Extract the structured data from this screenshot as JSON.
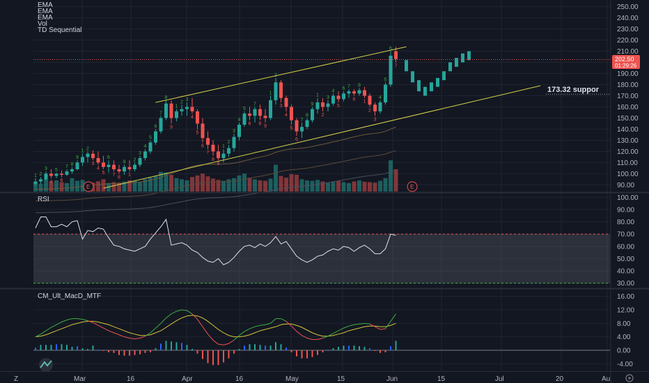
{
  "legend": {
    "main": [
      "EMA",
      "EMA",
      "EMA",
      "Vol",
      "TD Sequential"
    ],
    "rsi": "RSI",
    "macd": "CM_Ult_MacD_MTF"
  },
  "price_badge": {
    "price": "202.50",
    "countdown": "01:29:26"
  },
  "support_label": "173.32 suppor",
  "earnings_marker": "E",
  "time_labels": [
    "Mar",
    "16",
    "Apr",
    "16",
    "May",
    "15",
    "Jun",
    "15",
    "Jul",
    "20",
    "Au"
  ],
  "corner_left": "Z",
  "colors": {
    "background": "#131722",
    "grid": "#1f2430",
    "up_candle": "#26a69a",
    "down_candle": "#ef5350",
    "channel": "#d6d24a",
    "rsi_line": "#e0e3eb",
    "macd_line": "#3cb043",
    "signal_line": "#d6c43a",
    "price_line": "#ef5350"
  },
  "chart_data": [
    {
      "type": "candlestick",
      "title": "",
      "y_ticks": [
        250,
        240,
        230,
        220,
        210,
        200,
        190,
        180,
        170,
        160,
        150,
        140,
        130,
        120,
        110,
        100,
        90
      ],
      "ylim": [
        84,
        256
      ],
      "last_price": 202.5,
      "support_level": 173.32,
      "candles": [
        {
          "o": 91,
          "h": 96,
          "l": 89,
          "c": 93
        },
        {
          "o": 93,
          "h": 97,
          "l": 91,
          "c": 95
        },
        {
          "o": 95,
          "h": 102,
          "l": 94,
          "c": 100
        },
        {
          "o": 100,
          "h": 104,
          "l": 96,
          "c": 98
        },
        {
          "o": 98,
          "h": 101,
          "l": 96,
          "c": 100
        },
        {
          "o": 100,
          "h": 103,
          "l": 97,
          "c": 99
        },
        {
          "o": 99,
          "h": 104,
          "l": 98,
          "c": 102
        },
        {
          "o": 102,
          "h": 106,
          "l": 100,
          "c": 104
        },
        {
          "o": 104,
          "h": 112,
          "l": 103,
          "c": 110
        },
        {
          "o": 110,
          "h": 118,
          "l": 107,
          "c": 115
        },
        {
          "o": 115,
          "h": 120,
          "l": 110,
          "c": 118
        },
        {
          "o": 118,
          "h": 121,
          "l": 112,
          "c": 114
        },
        {
          "o": 114,
          "h": 120,
          "l": 108,
          "c": 110
        },
        {
          "o": 110,
          "h": 116,
          "l": 104,
          "c": 106
        },
        {
          "o": 106,
          "h": 112,
          "l": 101,
          "c": 108
        },
        {
          "o": 108,
          "h": 112,
          "l": 102,
          "c": 104
        },
        {
          "o": 104,
          "h": 108,
          "l": 100,
          "c": 102
        },
        {
          "o": 102,
          "h": 108,
          "l": 99,
          "c": 106
        },
        {
          "o": 106,
          "h": 112,
          "l": 102,
          "c": 104
        },
        {
          "o": 104,
          "h": 110,
          "l": 102,
          "c": 108
        },
        {
          "o": 108,
          "h": 116,
          "l": 106,
          "c": 114
        },
        {
          "o": 114,
          "h": 122,
          "l": 112,
          "c": 120
        },
        {
          "o": 120,
          "h": 130,
          "l": 118,
          "c": 128
        },
        {
          "o": 128,
          "h": 140,
          "l": 126,
          "c": 138
        },
        {
          "o": 138,
          "h": 152,
          "l": 136,
          "c": 150
        },
        {
          "o": 150,
          "h": 166,
          "l": 148,
          "c": 163
        },
        {
          "o": 163,
          "h": 166,
          "l": 145,
          "c": 150
        },
        {
          "o": 150,
          "h": 158,
          "l": 147,
          "c": 156
        },
        {
          "o": 156,
          "h": 162,
          "l": 152,
          "c": 158
        },
        {
          "o": 158,
          "h": 164,
          "l": 152,
          "c": 160
        },
        {
          "o": 160,
          "h": 168,
          "l": 154,
          "c": 156
        },
        {
          "o": 156,
          "h": 158,
          "l": 140,
          "c": 145
        },
        {
          "o": 145,
          "h": 150,
          "l": 128,
          "c": 132
        },
        {
          "o": 132,
          "h": 138,
          "l": 122,
          "c": 126
        },
        {
          "o": 126,
          "h": 130,
          "l": 116,
          "c": 120
        },
        {
          "o": 120,
          "h": 126,
          "l": 112,
          "c": 114
        },
        {
          "o": 114,
          "h": 122,
          "l": 110,
          "c": 118
        },
        {
          "o": 118,
          "h": 126,
          "l": 115,
          "c": 123
        },
        {
          "o": 123,
          "h": 136,
          "l": 120,
          "c": 133
        },
        {
          "o": 133,
          "h": 146,
          "l": 130,
          "c": 144
        },
        {
          "o": 144,
          "h": 156,
          "l": 142,
          "c": 154
        },
        {
          "o": 154,
          "h": 160,
          "l": 148,
          "c": 152
        },
        {
          "o": 152,
          "h": 160,
          "l": 146,
          "c": 158
        },
        {
          "o": 158,
          "h": 162,
          "l": 148,
          "c": 152
        },
        {
          "o": 152,
          "h": 158,
          "l": 146,
          "c": 150
        },
        {
          "o": 150,
          "h": 170,
          "l": 148,
          "c": 166
        },
        {
          "o": 166,
          "h": 186,
          "l": 162,
          "c": 182
        },
        {
          "o": 182,
          "h": 184,
          "l": 164,
          "c": 168
        },
        {
          "o": 168,
          "h": 170,
          "l": 156,
          "c": 160
        },
        {
          "o": 160,
          "h": 162,
          "l": 144,
          "c": 148
        },
        {
          "o": 148,
          "h": 150,
          "l": 134,
          "c": 138
        },
        {
          "o": 138,
          "h": 146,
          "l": 132,
          "c": 142
        },
        {
          "o": 142,
          "h": 150,
          "l": 140,
          "c": 148
        },
        {
          "o": 148,
          "h": 160,
          "l": 146,
          "c": 158
        },
        {
          "o": 158,
          "h": 168,
          "l": 154,
          "c": 164
        },
        {
          "o": 164,
          "h": 168,
          "l": 156,
          "c": 160
        },
        {
          "o": 160,
          "h": 166,
          "l": 156,
          "c": 163
        },
        {
          "o": 163,
          "h": 172,
          "l": 161,
          "c": 170
        },
        {
          "o": 170,
          "h": 174,
          "l": 164,
          "c": 167
        },
        {
          "o": 167,
          "h": 174,
          "l": 165,
          "c": 172
        },
        {
          "o": 172,
          "h": 176,
          "l": 168,
          "c": 174
        },
        {
          "o": 174,
          "h": 176,
          "l": 170,
          "c": 172
        },
        {
          "o": 172,
          "h": 177,
          "l": 170,
          "c": 175
        },
        {
          "o": 175,
          "h": 178,
          "l": 168,
          "c": 170
        },
        {
          "o": 170,
          "h": 172,
          "l": 160,
          "c": 162
        },
        {
          "o": 162,
          "h": 164,
          "l": 152,
          "c": 156
        },
        {
          "o": 156,
          "h": 166,
          "l": 154,
          "c": 164
        },
        {
          "o": 164,
          "h": 182,
          "l": 162,
          "c": 180
        },
        {
          "o": 180,
          "h": 210,
          "l": 178,
          "c": 206
        },
        {
          "o": 210,
          "h": 214,
          "l": 200,
          "c": 203
        }
      ],
      "forecast_bars": [
        {
          "lo": 192,
          "hi": 202
        },
        {
          "lo": 182,
          "hi": 192
        },
        {
          "lo": 174,
          "hi": 184
        },
        {
          "lo": 170,
          "hi": 178
        },
        {
          "lo": 174,
          "hi": 182
        },
        {
          "lo": 178,
          "hi": 186
        },
        {
          "lo": 184,
          "hi": 192
        },
        {
          "lo": 192,
          "hi": 200
        },
        {
          "lo": 196,
          "hi": 204
        },
        {
          "lo": 200,
          "hi": 208
        },
        {
          "lo": 202,
          "hi": 210
        }
      ],
      "volume": [
        40,
        35,
        55,
        45,
        50,
        42,
        38,
        60,
        48,
        52,
        44,
        40,
        46,
        55,
        38,
        42,
        40,
        45,
        50,
        48,
        42,
        55,
        62,
        70,
        88,
        85,
        75,
        60,
        55,
        50,
        65,
        72,
        80,
        68,
        58,
        52,
        48,
        55,
        60,
        72,
        80,
        62,
        55,
        50,
        48,
        58,
        120,
        70,
        62,
        78,
        75,
        55,
        50,
        48,
        52,
        45,
        40,
        44,
        48,
        42,
        38,
        45,
        50,
        44,
        42,
        40,
        48,
        60,
        140,
        100
      ],
      "td_setup_labels": [
        "1",
        "2",
        "3",
        "4",
        "5",
        "6",
        "7",
        "8",
        "9"
      ]
    },
    {
      "type": "line",
      "title": "RSI",
      "y_ticks": [
        100,
        90,
        80,
        70,
        60,
        50,
        40,
        30
      ],
      "ylim": [
        27,
        103
      ],
      "band": [
        30,
        70
      ],
      "values": [
        75,
        84,
        84,
        76,
        76,
        78,
        76,
        80,
        81,
        66,
        73,
        72,
        75,
        74,
        67,
        61,
        60,
        58,
        57,
        56,
        58,
        60,
        66,
        71,
        76,
        82,
        61,
        62,
        63,
        61,
        57,
        55,
        51,
        48,
        47,
        50,
        45,
        47,
        51,
        56,
        60,
        61,
        59,
        62,
        60,
        63,
        68,
        62,
        64,
        58,
        52,
        49,
        47,
        49,
        52,
        53,
        56,
        58,
        57,
        60,
        59,
        56,
        59,
        61,
        58,
        54,
        54,
        58,
        70,
        69
      ]
    },
    {
      "type": "line",
      "title": "CM_Ult_MacD_MTF",
      "y_ticks": [
        16,
        12,
        8,
        4,
        0,
        -4
      ],
      "ylim": [
        -6,
        18
      ],
      "macd": [
        4.0,
        4.8,
        5.8,
        6.8,
        7.6,
        8.4,
        9.0,
        9.4,
        9.4,
        9.2,
        8.8,
        8.2,
        7.4,
        6.6,
        5.8,
        5.2,
        4.6,
        4.0,
        3.6,
        3.4,
        3.6,
        4.2,
        5.2,
        6.6,
        8.0,
        9.6,
        10.8,
        11.6,
        12.0,
        11.8,
        10.8,
        9.2,
        7.0,
        4.8,
        3.0,
        1.8,
        1.6,
        2.0,
        3.0,
        4.4,
        5.6,
        6.4,
        7.0,
        7.4,
        7.6,
        8.0,
        9.4,
        9.4,
        8.6,
        7.2,
        5.6,
        4.4,
        3.6,
        3.2,
        3.2,
        3.6,
        4.2,
        5.0,
        5.8,
        6.6,
        7.2,
        7.6,
        7.8,
        8.0,
        7.8,
        7.0,
        6.2,
        6.4,
        8.6,
        10.8
      ],
      "signal": [
        4.0,
        4.2,
        4.6,
        5.2,
        5.8,
        6.4,
        7.0,
        7.6,
        8.0,
        8.4,
        8.6,
        8.6,
        8.4,
        8.0,
        7.6,
        7.0,
        6.4,
        5.8,
        5.2,
        4.8,
        4.4,
        4.4,
        4.6,
        5.2,
        5.8,
        6.8,
        7.8,
        8.8,
        9.6,
        10.2,
        10.4,
        10.2,
        9.6,
        8.6,
        7.4,
        6.2,
        5.2,
        4.4,
        4.0,
        4.0,
        4.2,
        4.6,
        5.2,
        5.8,
        6.2,
        6.6,
        7.0,
        7.6,
        7.8,
        7.8,
        7.4,
        6.8,
        6.0,
        5.2,
        4.6,
        4.2,
        4.2,
        4.4,
        4.8,
        5.2,
        5.8,
        6.2,
        6.6,
        7.0,
        7.2,
        7.2,
        7.0,
        7.0,
        7.4,
        8.0
      ],
      "histogram": [
        0.8,
        1.6,
        1.6,
        1.6,
        1.8,
        1.8,
        1.6,
        1.0,
        1.2,
        0.6,
        0.4,
        1.4,
        0.2,
        -0.2,
        -0.6,
        -0.8,
        -1.4,
        -1.6,
        -1.6,
        -1.4,
        -1.2,
        -0.8,
        -0.6,
        0.6,
        2.0,
        2.8,
        2.6,
        2.4,
        2.2,
        1.6,
        0.4,
        -1.0,
        -2.6,
        -3.8,
        -4.4,
        -4.4,
        -3.6,
        -2.4,
        -1.0,
        0.4,
        1.4,
        1.8,
        1.8,
        1.6,
        1.4,
        1.4,
        2.4,
        1.8,
        0.8,
        -0.6,
        -1.8,
        -2.4,
        -2.4,
        -2.0,
        -1.4,
        -0.6,
        0.0,
        0.6,
        1.0,
        1.4,
        1.4,
        1.4,
        1.2,
        1.0,
        0.6,
        -0.2,
        -0.8,
        -0.6,
        1.2,
        2.8
      ]
    }
  ]
}
